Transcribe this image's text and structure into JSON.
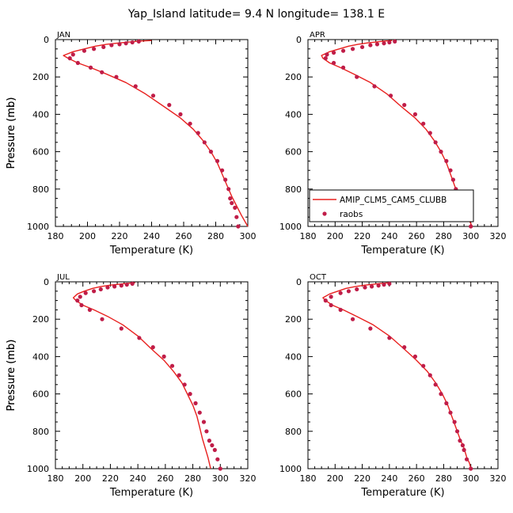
{
  "figure": {
    "title": "Yap_Island   latitude= 9.4 N longitude= 138.1 E"
  },
  "legend": {
    "panel": 1,
    "entries": [
      {
        "label": "AMIP_CLM5_CAM5_CLUBB",
        "kind": "line",
        "color": "#e8201e"
      },
      {
        "label": "raobs",
        "kind": "marker",
        "color": "#c01d48"
      }
    ]
  },
  "chart_data": [
    {
      "type": "line",
      "panel_label": "JAN",
      "xlabel": "Temperature (K)",
      "ylabel": "Pressure (mb)",
      "xlim": [
        180,
        300
      ],
      "ylim": [
        1000,
        0
      ],
      "xticks": [
        180,
        200,
        220,
        240,
        260,
        280,
        300
      ],
      "yticks": [
        0,
        200,
        400,
        600,
        800,
        1000
      ],
      "series": [
        {
          "kind": "line",
          "color": "#e8201e",
          "x": [
            240,
            232,
            226,
            220,
            212,
            205,
            198,
            191,
            185,
            188,
            194,
            202,
            212,
            224,
            236,
            248,
            258,
            266,
            272,
            277,
            281,
            284,
            287,
            290,
            293,
            296,
            298,
            300
          ],
          "y": [
            5,
            8,
            13,
            18,
            25,
            35,
            50,
            65,
            85,
            100,
            125,
            150,
            185,
            230,
            290,
            360,
            420,
            480,
            540,
            600,
            660,
            720,
            780,
            840,
            890,
            940,
            970,
            1000
          ]
        },
        {
          "kind": "marker",
          "color": "#c01d48",
          "x": [
            232,
            228,
            224,
            220,
            215,
            210,
            204,
            198,
            191,
            189,
            194,
            202,
            209,
            218,
            230,
            241,
            251,
            258,
            264,
            269,
            273,
            277,
            281,
            284,
            286,
            288,
            289,
            290,
            292,
            293,
            294
          ],
          "y": [
            10,
            15,
            20,
            25,
            30,
            40,
            50,
            60,
            80,
            100,
            125,
            150,
            175,
            200,
            250,
            300,
            350,
            400,
            450,
            500,
            550,
            600,
            650,
            700,
            750,
            800,
            850,
            875,
            900,
            950,
            1000
          ]
        }
      ]
    },
    {
      "type": "line",
      "panel_label": "APR",
      "xlabel": "Temperature (K)",
      "ylabel": "Pressure (mb)",
      "xlim": [
        180,
        320
      ],
      "ylim": [
        1000,
        0
      ],
      "xticks": [
        180,
        200,
        220,
        240,
        260,
        280,
        300,
        320
      ],
      "yticks": [
        0,
        200,
        400,
        600,
        800,
        1000
      ],
      "series": [
        {
          "kind": "line",
          "color": "#e8201e",
          "x": [
            242,
            236,
            230,
            224,
            217,
            210,
            203,
            196,
            190,
            191,
            196,
            204,
            214,
            226,
            238,
            249,
            259,
            267,
            273,
            278,
            282,
            285,
            288,
            291,
            294,
            297,
            299,
            301
          ],
          "y": [
            5,
            8,
            13,
            18,
            25,
            35,
            50,
            65,
            85,
            100,
            125,
            150,
            185,
            230,
            290,
            360,
            420,
            480,
            540,
            600,
            660,
            720,
            780,
            840,
            890,
            940,
            970,
            1000
          ]
        },
        {
          "kind": "marker",
          "color": "#c01d48",
          "x": [
            244,
            240,
            236,
            231,
            226,
            220,
            213,
            206,
            199,
            194,
            193,
            199,
            206,
            216,
            229,
            241,
            251,
            259,
            265,
            270,
            274,
            278,
            282,
            285,
            287,
            289,
            291,
            292,
            294,
            296,
            300
          ],
          "y": [
            10,
            15,
            20,
            25,
            30,
            40,
            50,
            60,
            70,
            80,
            100,
            125,
            150,
            200,
            250,
            300,
            350,
            400,
            450,
            500,
            550,
            600,
            650,
            700,
            750,
            800,
            850,
            875,
            900,
            950,
            1000
          ]
        }
      ]
    },
    {
      "type": "line",
      "panel_label": "JUL",
      "xlabel": "Temperature (K)",
      "ylabel": "Pressure (mb)",
      "xlim": [
        180,
        320
      ],
      "ylim": [
        1000,
        0
      ],
      "xticks": [
        180,
        200,
        220,
        240,
        260,
        280,
        300,
        320
      ],
      "yticks": [
        0,
        200,
        400,
        600,
        800,
        1000
      ],
      "series": [
        {
          "kind": "line",
          "color": "#e8201e",
          "x": [
            238,
            232,
            226,
            220,
            213,
            207,
            201,
            196,
            193,
            195,
            200,
            208,
            218,
            229,
            240,
            250,
            259,
            266,
            272,
            276,
            280,
            283,
            285,
            287,
            289,
            291,
            292,
            293
          ],
          "y": [
            5,
            8,
            13,
            18,
            25,
            35,
            50,
            65,
            85,
            100,
            125,
            150,
            185,
            230,
            290,
            360,
            420,
            480,
            540,
            600,
            660,
            720,
            780,
            840,
            890,
            940,
            970,
            1000
          ]
        },
        {
          "kind": "marker",
          "color": "#c01d48",
          "x": [
            236,
            232,
            228,
            223,
            218,
            213,
            208,
            202,
            198,
            196,
            199,
            205,
            214,
            228,
            241,
            251,
            259,
            265,
            270,
            274,
            278,
            282,
            285,
            288,
            290,
            292,
            294,
            296,
            298,
            300
          ],
          "y": [
            10,
            15,
            20,
            25,
            30,
            40,
            50,
            60,
            80,
            100,
            125,
            150,
            200,
            250,
            300,
            350,
            400,
            450,
            500,
            550,
            600,
            650,
            700,
            750,
            800,
            850,
            875,
            900,
            950,
            1000
          ]
        }
      ]
    },
    {
      "type": "line",
      "panel_label": "OCT",
      "xlabel": "Temperature (K)",
      "ylabel": "Pressure (mb)",
      "xlim": [
        180,
        320
      ],
      "ylim": [
        1000,
        0
      ],
      "xticks": [
        180,
        200,
        220,
        240,
        260,
        280,
        300,
        320
      ],
      "yticks": [
        0,
        200,
        400,
        600,
        800,
        1000
      ],
      "series": [
        {
          "kind": "line",
          "color": "#e8201e",
          "x": [
            240,
            234,
            228,
            222,
            215,
            208,
            202,
            196,
            191,
            193,
            198,
            206,
            216,
            228,
            240,
            251,
            260,
            268,
            274,
            279,
            283,
            286,
            289,
            292,
            295,
            297,
            299,
            300
          ],
          "y": [
            5,
            8,
            13,
            18,
            25,
            35,
            50,
            65,
            85,
            100,
            125,
            150,
            185,
            230,
            290,
            360,
            420,
            480,
            540,
            600,
            660,
            720,
            780,
            840,
            890,
            940,
            970,
            1000
          ]
        },
        {
          "kind": "marker",
          "color": "#c01d48",
          "x": [
            240,
            236,
            232,
            227,
            222,
            216,
            210,
            204,
            197,
            193,
            197,
            204,
            213,
            226,
            240,
            251,
            259,
            265,
            270,
            274,
            278,
            282,
            285,
            288,
            290,
            292,
            294,
            295,
            297,
            300
          ],
          "y": [
            10,
            15,
            20,
            25,
            30,
            40,
            50,
            60,
            80,
            100,
            125,
            150,
            200,
            250,
            300,
            350,
            400,
            450,
            500,
            550,
            600,
            650,
            700,
            750,
            800,
            850,
            875,
            900,
            950,
            1000
          ]
        }
      ]
    }
  ]
}
